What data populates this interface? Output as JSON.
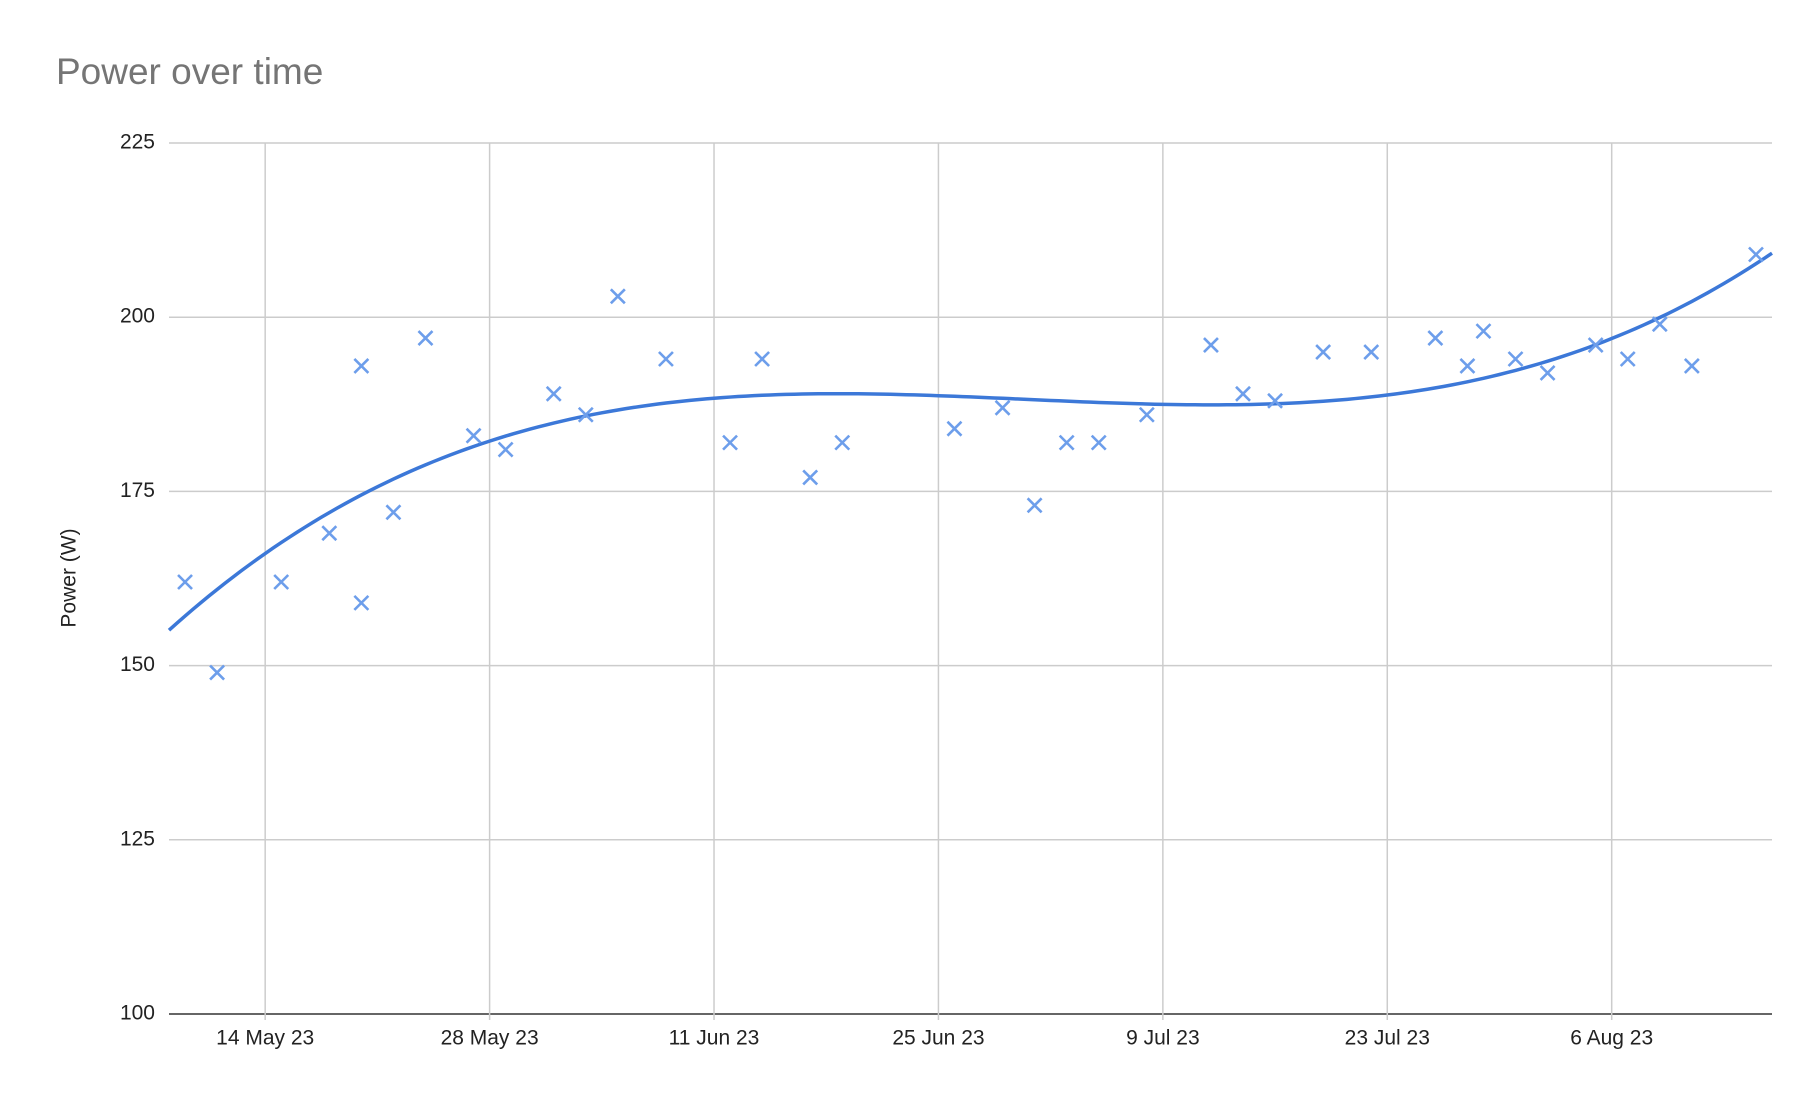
{
  "chart_data": {
    "type": "scatter",
    "title": "Power over time",
    "y_label": "Power (W)",
    "x": [
      "2023-05-09",
      "2023-05-11",
      "2023-05-15",
      "2023-05-18",
      "2023-05-20",
      "2023-05-20",
      "2023-05-22",
      "2023-05-24",
      "2023-05-27",
      "2023-05-29",
      "2023-06-01",
      "2023-06-03",
      "2023-06-05",
      "2023-06-08",
      "2023-06-12",
      "2023-06-14",
      "2023-06-17",
      "2023-06-19",
      "2023-06-26",
      "2023-06-29",
      "2023-07-01",
      "2023-07-03",
      "2023-07-05",
      "2023-07-08",
      "2023-07-12",
      "2023-07-14",
      "2023-07-16",
      "2023-07-19",
      "2023-07-22",
      "2023-07-26",
      "2023-07-28",
      "2023-07-29",
      "2023-07-31",
      "2023-08-02",
      "2023-08-05",
      "2023-08-07",
      "2023-08-09",
      "2023-08-11",
      "2023-08-15"
    ],
    "values": [
      162,
      149,
      162,
      169,
      193,
      159,
      172,
      197,
      183,
      181,
      189,
      186,
      203,
      194,
      182,
      194,
      177,
      182,
      184,
      187,
      173,
      182,
      182,
      186,
      196,
      189,
      188,
      195,
      195,
      197,
      193,
      198,
      194,
      192,
      196,
      194,
      199,
      193,
      209
    ],
    "color": "#6d9eeb",
    "trendline": "polynomial",
    "trendline_degree": 3,
    "trendline_color": "#3c78d8",
    "xlim": [
      "2023-05-08",
      "2023-08-16"
    ],
    "xticks": [
      {
        "value": "2023-05-14",
        "label": "14 May 23"
      },
      {
        "value": "2023-05-28",
        "label": "28 May 23"
      },
      {
        "value": "2023-06-11",
        "label": "11 Jun 23"
      },
      {
        "value": "2023-06-25",
        "label": "25 Jun 23"
      },
      {
        "value": "2023-07-09",
        "label": "9 Jul 23"
      },
      {
        "value": "2023-07-23",
        "label": "23 Jul 23"
      },
      {
        "value": "2023-08-06",
        "label": "6 Aug 23"
      }
    ],
    "ylim": [
      100,
      225
    ],
    "yticks": [
      100,
      125,
      150,
      175,
      200,
      225
    ],
    "grid": true
  }
}
